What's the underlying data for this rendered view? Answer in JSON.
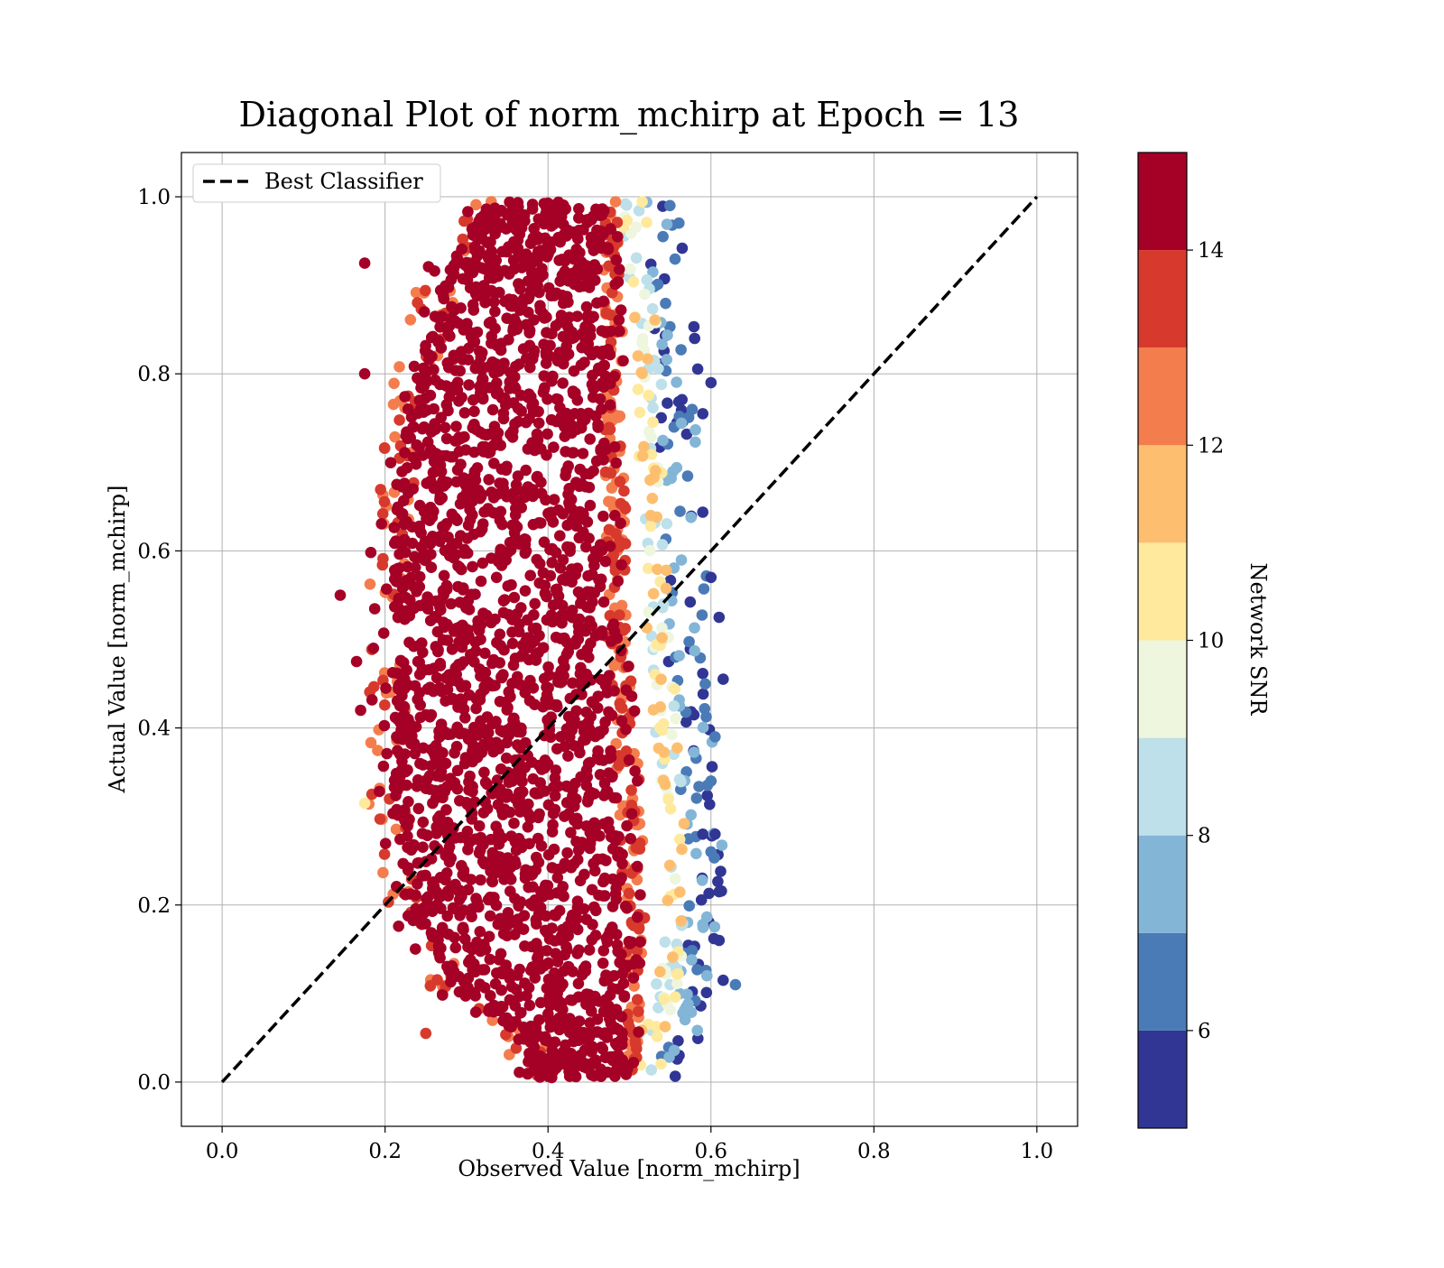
{
  "chart_data": {
    "type": "scatter",
    "title": "Diagonal Plot of norm_mchirp at Epoch = 13",
    "xlabel": "Observed Value [norm_mchirp]",
    "ylabel": "Actual Value [norm_mchirp]",
    "xlim": [
      -0.05,
      1.05
    ],
    "ylim": [
      -0.05,
      1.05
    ],
    "xticks": [
      0.0,
      0.2,
      0.4,
      0.6,
      0.8,
      1.0
    ],
    "yticks": [
      0.0,
      0.2,
      0.4,
      0.6,
      0.8,
      1.0
    ],
    "xtick_labels": [
      "0.0",
      "0.2",
      "0.4",
      "0.6",
      "0.8",
      "1.0"
    ],
    "ytick_labels": [
      "0.0",
      "0.2",
      "0.4",
      "0.6",
      "0.8",
      "1.0"
    ],
    "grid": true,
    "legend": {
      "placement": "upper-left",
      "entries": [
        {
          "label": "Best Classifier",
          "style": "dashed",
          "color": "#000000"
        }
      ]
    },
    "best_classifier_line": {
      "x": [
        0.0,
        1.0
      ],
      "y": [
        0.0,
        1.0
      ]
    },
    "colorbar": {
      "label": "Network SNR",
      "range": [
        5,
        15
      ],
      "ticks": [
        6,
        8,
        10,
        12,
        14
      ],
      "tick_labels": [
        "6",
        "8",
        "10",
        "12",
        "14"
      ],
      "bins": [
        {
          "from": 5,
          "to": 6,
          "color": "#313695"
        },
        {
          "from": 6,
          "to": 7,
          "color": "#4a7bb7"
        },
        {
          "from": 7,
          "to": 8,
          "color": "#83b5d7"
        },
        {
          "from": 8,
          "to": 9,
          "color": "#bde0ea"
        },
        {
          "from": 9,
          "to": 10,
          "color": "#eef6de"
        },
        {
          "from": 10,
          "to": 11,
          "color": "#fee99d"
        },
        {
          "from": 11,
          "to": 12,
          "color": "#fdbf6f"
        },
        {
          "from": 12,
          "to": 13,
          "color": "#f47d4d"
        },
        {
          "from": 13,
          "to": 14,
          "color": "#d73a2c"
        },
        {
          "from": 14,
          "to": 15,
          "color": "#a50026"
        }
      ]
    },
    "scatter_distribution": {
      "description_of_cloud": "dense cloud of points (snr colour) spanning actual 0.0–1.0",
      "bands": [
        {
          "y": 0.05,
          "x_left": 0.37,
          "x_right": 0.53
        },
        {
          "y": 0.1,
          "x_left": 0.28,
          "x_right": 0.55
        },
        {
          "y": 0.2,
          "x_left": 0.22,
          "x_right": 0.56
        },
        {
          "y": 0.3,
          "x_left": 0.2,
          "x_right": 0.56
        },
        {
          "y": 0.4,
          "x_left": 0.2,
          "x_right": 0.55
        },
        {
          "y": 0.5,
          "x_left": 0.2,
          "x_right": 0.54
        },
        {
          "y": 0.6,
          "x_left": 0.2,
          "x_right": 0.54
        },
        {
          "y": 0.7,
          "x_left": 0.21,
          "x_right": 0.53
        },
        {
          "y": 0.8,
          "x_left": 0.23,
          "x_right": 0.53
        },
        {
          "y": 0.9,
          "x_left": 0.26,
          "x_right": 0.52
        },
        {
          "y": 0.98,
          "x_left": 0.31,
          "x_right": 0.51
        }
      ],
      "outliers": [
        {
          "x": 0.145,
          "y": 0.55,
          "snr": 14.5
        },
        {
          "x": 0.17,
          "y": 0.42,
          "snr": 14.5
        },
        {
          "x": 0.165,
          "y": 0.475,
          "snr": 14.5
        },
        {
          "x": 0.175,
          "y": 0.8,
          "snr": 14.5
        },
        {
          "x": 0.175,
          "y": 0.925,
          "snr": 14.5
        },
        {
          "x": 0.25,
          "y": 0.055,
          "snr": 13.5
        },
        {
          "x": 0.175,
          "y": 0.315,
          "snr": 10.5
        },
        {
          "x": 0.6,
          "y": 0.79,
          "snr": 5.5
        },
        {
          "x": 0.59,
          "y": 0.755,
          "snr": 5.5
        },
        {
          "x": 0.61,
          "y": 0.525,
          "snr": 5.5
        },
        {
          "x": 0.615,
          "y": 0.455,
          "snr": 5.5
        },
        {
          "x": 0.6,
          "y": 0.57,
          "snr": 5.5
        },
        {
          "x": 0.605,
          "y": 0.39,
          "snr": 6.5
        },
        {
          "x": 0.63,
          "y": 0.11,
          "snr": 6.5
        },
        {
          "x": 0.615,
          "y": 0.115,
          "snr": 5.5
        },
        {
          "x": 0.61,
          "y": 0.16,
          "snr": 5.5
        },
        {
          "x": 0.61,
          "y": 0.215,
          "snr": 5.5
        },
        {
          "x": 0.6,
          "y": 0.34,
          "snr": 6.5
        },
        {
          "x": 0.58,
          "y": 0.84,
          "snr": 5.5
        },
        {
          "x": 0.59,
          "y": 0.28,
          "snr": 5.5
        },
        {
          "x": 0.605,
          "y": 0.28,
          "snr": 5.5
        },
        {
          "x": 0.6,
          "y": 0.26,
          "snr": 6.5
        },
        {
          "x": 0.595,
          "y": 0.12,
          "snr": 7.5
        }
      ]
    }
  }
}
